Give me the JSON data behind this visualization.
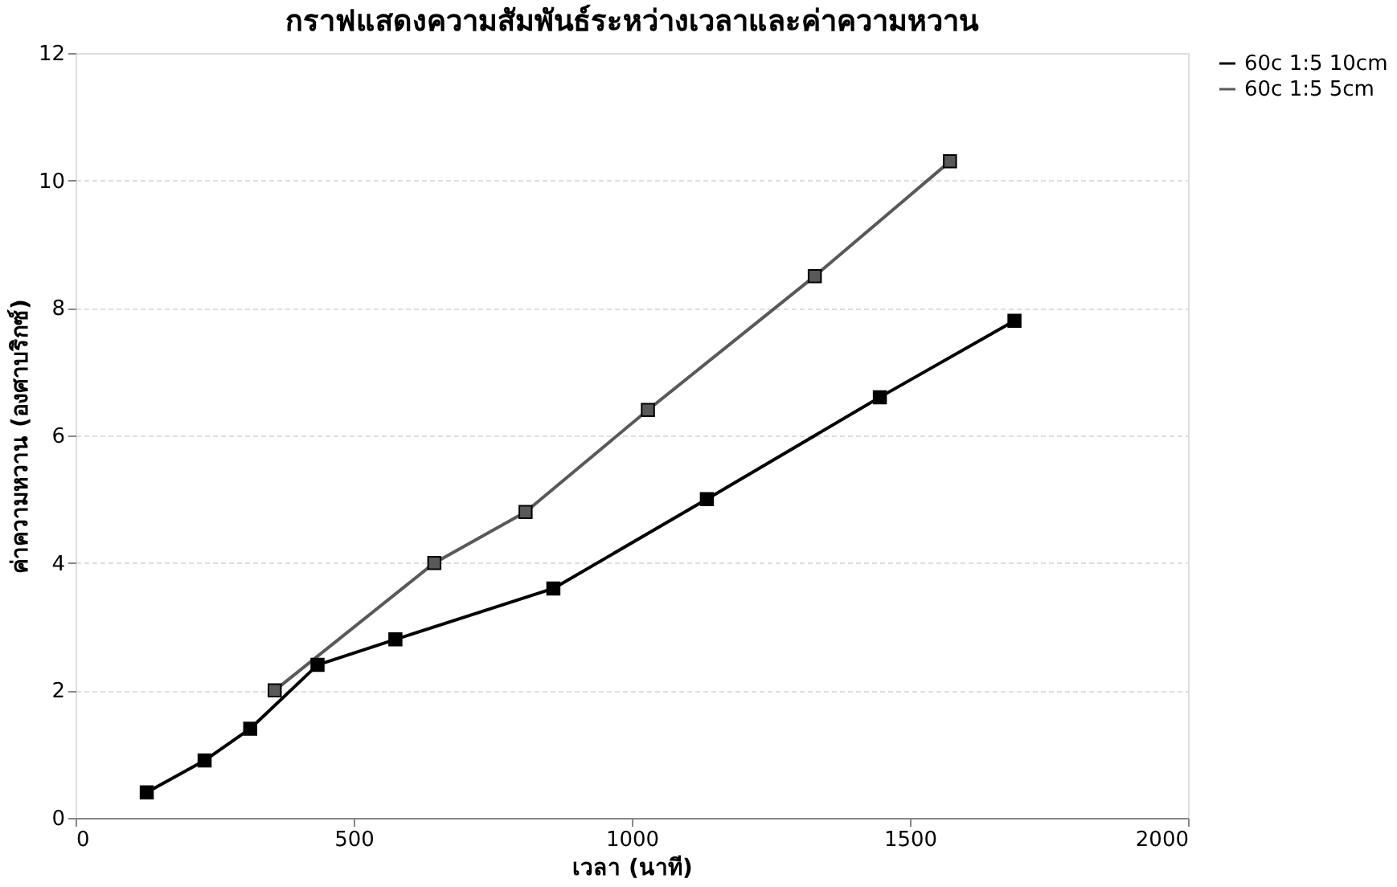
{
  "chart_data": {
    "type": "line",
    "title": "กราฟแสดงความสัมพันธ์ระหว่างเวลาและค่าความหวาน",
    "xlabel": "เวลา (นาที)",
    "ylabel": "ค่าความหวาน (องศาบริกซ์)",
    "series": [
      {
        "name": "60c 1:5 10cm",
        "color": "#000000",
        "x": [
          128,
          232,
          314,
          435,
          575,
          859,
          1135,
          1446,
          1688
        ],
        "values": [
          0.4,
          0.9,
          1.4,
          2.4,
          2.8,
          3.6,
          5.0,
          6.6,
          7.8
        ]
      },
      {
        "name": "60c 1:5 5cm",
        "color": "#595959",
        "x": [
          358,
          645,
          809,
          1029,
          1329,
          1572
        ],
        "values": [
          2.0,
          4.0,
          4.8,
          6.4,
          8.5,
          10.3
        ]
      }
    ],
    "xlim": [
      0,
      2000
    ],
    "xticks": [
      0,
      500,
      1000,
      1500,
      2000
    ],
    "ylim": [
      0,
      12
    ],
    "yticks": [
      0,
      2,
      4,
      6,
      8,
      10,
      12
    ],
    "grid": "y",
    "legend": "right",
    "marker": "square",
    "line_style": "solid"
  }
}
